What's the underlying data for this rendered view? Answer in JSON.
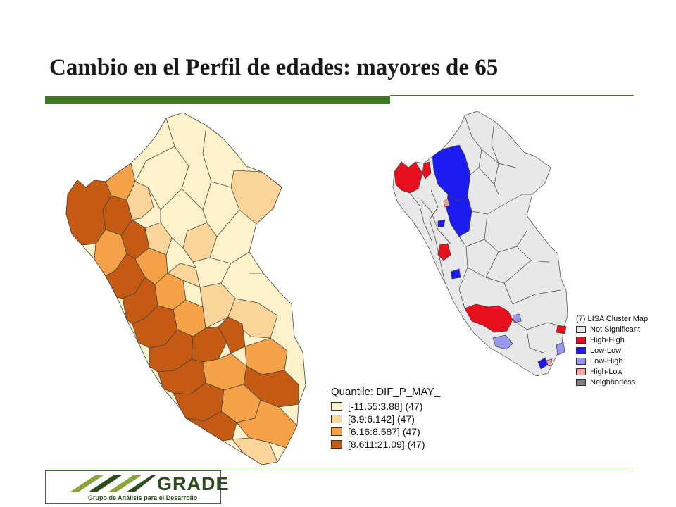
{
  "slide": {
    "title": "Cambio en el Perfil de edades: mayores de 65"
  },
  "maps": {
    "quantile_map": {
      "legend_title": "Quantile: DIF_P_MAY_",
      "classes": [
        {
          "label": "[-11.55:3.88] (47)",
          "color": "#fdf2c9"
        },
        {
          "label": "[3.9:6.142] (47)",
          "color": "#fbd49a"
        },
        {
          "label": "[6.16:8.587] (47)",
          "color": "#f5a147"
        },
        {
          "label": "[8.611:21.09] (47)",
          "color": "#c55a12"
        }
      ]
    },
    "lisa_map": {
      "legend_title": "(7) LISA Cluster Map",
      "classes": [
        {
          "label": "Not Significant",
          "color": "#e8e8e8"
        },
        {
          "label": "High-High",
          "color": "#e8101e"
        },
        {
          "label": "Low-Low",
          "color": "#1c1cf0"
        },
        {
          "label": "Low-High",
          "color": "#9898ee"
        },
        {
          "label": "High-Low",
          "color": "#f4a0a0"
        },
        {
          "label": "Neighborless",
          "color": "#808080"
        }
      ]
    }
  },
  "logo": {
    "name": "GRADE",
    "tagline": "Grupo de Análisis para el Desarrollo",
    "color": "#2e4d1c",
    "accent": "#8aa63a"
  }
}
